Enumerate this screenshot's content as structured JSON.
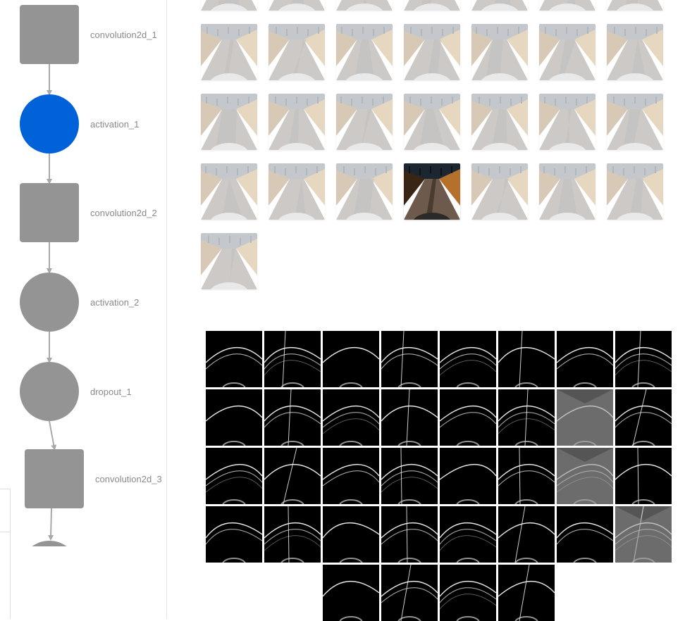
{
  "graph": {
    "nodes": [
      {
        "label": "convolution2d_1",
        "shape": "square",
        "active": false
      },
      {
        "label": "activation_1",
        "shape": "circle",
        "active": true
      },
      {
        "label": "convolution2d_2",
        "shape": "square",
        "active": false
      },
      {
        "label": "activation_2",
        "shape": "circle",
        "active": false
      },
      {
        "label": "dropout_1",
        "shape": "circle",
        "active": false
      },
      {
        "label": "convolution2d_3",
        "shape": "square",
        "active": false
      }
    ],
    "colors": {
      "inactive": "#949494",
      "active": "#0062d8",
      "edge": "#a9a9a9"
    }
  },
  "input_images": {
    "count": 29,
    "selected_index": 24,
    "columns": 7
  },
  "feature_maps": {
    "count": 36,
    "columns": 8,
    "bright_maps": [
      14,
      22,
      31
    ]
  }
}
